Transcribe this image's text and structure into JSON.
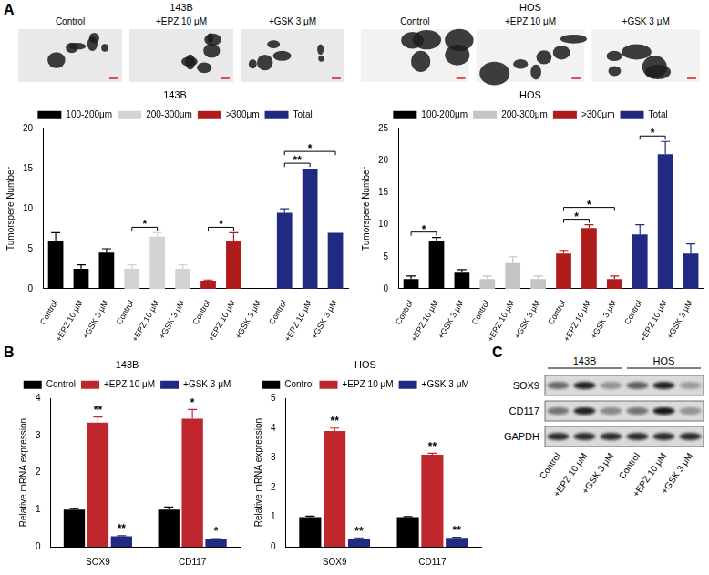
{
  "panel_labels": [
    "A",
    "B",
    "C"
  ],
  "micrographs": [
    {
      "title": "143B",
      "labels": [
        "Control",
        "+EPZ 10 μM",
        "+GSK 3 μM"
      ]
    },
    {
      "title": "HOS",
      "labels": [
        "Control",
        "+EPZ 10 μM",
        "+GSK 3 μM"
      ]
    }
  ],
  "chart_data": [
    {
      "type": "bar",
      "title": "143B",
      "y_label": "Tumorspere Number",
      "categories": [
        "Control",
        "+EPZ 10 μM",
        "+GSK 3 μM",
        "Control",
        "+EPZ 10 μM",
        "+GSK 3 μM",
        "Control",
        "+EPZ 10 μM",
        "+GSK 3 μM",
        "Control",
        "+EPZ 10 μM",
        "+GSK 3 μM"
      ],
      "series": [
        {
          "name": "100-200μm",
          "color": "#000000",
          "values": [
            6,
            2.5,
            4.5,
            null,
            null,
            null,
            null,
            null,
            null,
            null,
            null,
            null
          ],
          "errors": [
            1,
            0.5,
            0.5,
            null,
            null,
            null,
            null,
            null,
            null,
            null,
            null,
            null
          ]
        },
        {
          "name": "200-300μm",
          "color": "#d3d3d3",
          "values": [
            null,
            null,
            null,
            2.5,
            6.5,
            2.5,
            null,
            null,
            null,
            null,
            null,
            null
          ],
          "errors": [
            null,
            null,
            null,
            0.5,
            0.5,
            0.5,
            null,
            null,
            null,
            null,
            null,
            null
          ]
        },
        {
          "name": ">300μm",
          "color": "#b01c1c",
          "values": [
            null,
            null,
            null,
            null,
            null,
            null,
            1,
            6,
            0,
            null,
            null,
            null
          ],
          "errors": [
            null,
            null,
            null,
            null,
            null,
            null,
            0.1,
            1,
            0,
            null,
            null,
            null
          ]
        },
        {
          "name": "Total",
          "color": "#1f2a80",
          "values": [
            null,
            null,
            null,
            null,
            null,
            null,
            null,
            null,
            null,
            9.5,
            15,
            7
          ],
          "errors": [
            null,
            null,
            null,
            null,
            null,
            null,
            null,
            null,
            null,
            0.5,
            0,
            0
          ]
        }
      ],
      "significance": [
        {
          "from": 3,
          "to": 4,
          "label": "*"
        },
        {
          "from": 6,
          "to": 7,
          "label": "*"
        },
        {
          "from": 9,
          "to": 10,
          "label": "**"
        },
        {
          "from": 9,
          "to": 11,
          "label": "*"
        }
      ],
      "ylim": [
        0,
        20
      ],
      "yticks": [
        0,
        5,
        10,
        15,
        20
      ],
      "grid": false,
      "legend": "top"
    },
    {
      "type": "bar",
      "title": "HOS",
      "y_label": "Tumorspere Number",
      "categories": [
        "Control",
        "+EPZ 10 μM",
        "+GSK 3 μM",
        "Control",
        "+EPZ 10 μM",
        "+GSK 3 μM",
        "Control",
        "+EPZ 10 μM",
        "+GSK 3 μM",
        "Control",
        "+EPZ 10 μM",
        "+GSK 3 μM"
      ],
      "series": [
        {
          "name": "100-200μm",
          "color": "#000000",
          "values": [
            1.5,
            7.5,
            2.5,
            null,
            null,
            null,
            null,
            null,
            null,
            null,
            null,
            null
          ],
          "errors": [
            0.5,
            0.5,
            0.5,
            null,
            null,
            null,
            null,
            null,
            null,
            null,
            null,
            null
          ]
        },
        {
          "name": "200-300μm",
          "color": "#c4c4c4",
          "values": [
            null,
            null,
            null,
            1.5,
            4,
            1.5,
            null,
            null,
            null,
            null,
            null,
            null
          ],
          "errors": [
            null,
            null,
            null,
            0.5,
            1,
            0.5,
            null,
            null,
            null,
            null,
            null,
            null
          ]
        },
        {
          "name": ">300μm",
          "color": "#b01c1c",
          "values": [
            null,
            null,
            null,
            null,
            null,
            null,
            5.5,
            9.5,
            1.5,
            null,
            null,
            null
          ],
          "errors": [
            null,
            null,
            null,
            null,
            null,
            null,
            0.5,
            0.5,
            0.5,
            null,
            null,
            null
          ]
        },
        {
          "name": "Total",
          "color": "#1f2a80",
          "values": [
            null,
            null,
            null,
            null,
            null,
            null,
            null,
            null,
            null,
            8.5,
            21,
            5.5
          ],
          "errors": [
            null,
            null,
            null,
            null,
            null,
            null,
            null,
            null,
            null,
            1.5,
            2,
            1.5
          ]
        }
      ],
      "significance": [
        {
          "from": 0,
          "to": 1,
          "label": "*"
        },
        {
          "from": 6,
          "to": 7,
          "label": "*"
        },
        {
          "from": 6,
          "to": 8,
          "label": "*"
        },
        {
          "from": 9,
          "to": 10,
          "label": "*"
        }
      ],
      "ylim": [
        0,
        25
      ],
      "yticks": [
        0,
        5,
        10,
        15,
        20,
        25
      ],
      "grid": false,
      "legend": "top"
    },
    {
      "type": "bar",
      "title": "143B",
      "y_label": "Relative mRNA expression",
      "categories": [
        "SOX9",
        "CD117"
      ],
      "series": [
        {
          "name": "Control",
          "color": "#000000",
          "values": [
            1,
            1
          ],
          "errors": [
            0.03,
            0.07
          ],
          "stars": [
            null,
            null
          ]
        },
        {
          "name": "+EPZ 10 μM",
          "color": "#c0272d",
          "values": [
            3.35,
            3.45
          ],
          "errors": [
            0.15,
            0.25
          ],
          "stars": [
            "**",
            "*"
          ]
        },
        {
          "name": "+GSK 3 μM",
          "color": "#1f2a80",
          "values": [
            0.28,
            0.2
          ],
          "errors": [
            0.02,
            0.02
          ],
          "stars": [
            "**",
            "*"
          ]
        }
      ],
      "ylim": [
        0,
        4
      ],
      "yticks": [
        0,
        1,
        2,
        3,
        4
      ],
      "grid": false,
      "legend": "top"
    },
    {
      "type": "bar",
      "title": "HOS",
      "y_label": "Relative mRNA expression",
      "categories": [
        "SOX9",
        "CD117"
      ],
      "series": [
        {
          "name": "Control",
          "color": "#000000",
          "values": [
            1,
            1
          ],
          "errors": [
            0.03,
            0.02
          ],
          "stars": [
            null,
            null
          ]
        },
        {
          "name": "+EPZ 10 μM",
          "color": "#c0272d",
          "values": [
            3.9,
            3.1
          ],
          "errors": [
            0.1,
            0.05
          ],
          "stars": [
            "**",
            "**"
          ]
        },
        {
          "name": "+GSK 3 μM",
          "color": "#1f2a80",
          "values": [
            0.28,
            0.3
          ],
          "errors": [
            0.02,
            0.02
          ],
          "stars": [
            "**",
            "**"
          ]
        }
      ],
      "ylim": [
        0,
        5
      ],
      "yticks": [
        0,
        1,
        2,
        3,
        4,
        5
      ],
      "grid": false,
      "legend": "top"
    }
  ],
  "western_blot": {
    "groups": [
      "143B",
      "HOS"
    ],
    "lanes": [
      "Control",
      "+EPZ 10 μM",
      "+GSK 3 μM",
      "Control",
      "+EPZ 10 μM",
      "+GSK 3 μM"
    ],
    "rows": [
      {
        "name": "SOX9",
        "intensities": [
          0.55,
          0.9,
          0.35,
          0.6,
          0.9,
          0.3
        ]
      },
      {
        "name": "CD117",
        "intensities": [
          0.5,
          0.9,
          0.4,
          0.5,
          0.95,
          0.35
        ]
      },
      {
        "name": "GAPDH",
        "intensities": [
          0.85,
          0.85,
          0.85,
          0.85,
          0.85,
          0.85
        ]
      }
    ]
  }
}
